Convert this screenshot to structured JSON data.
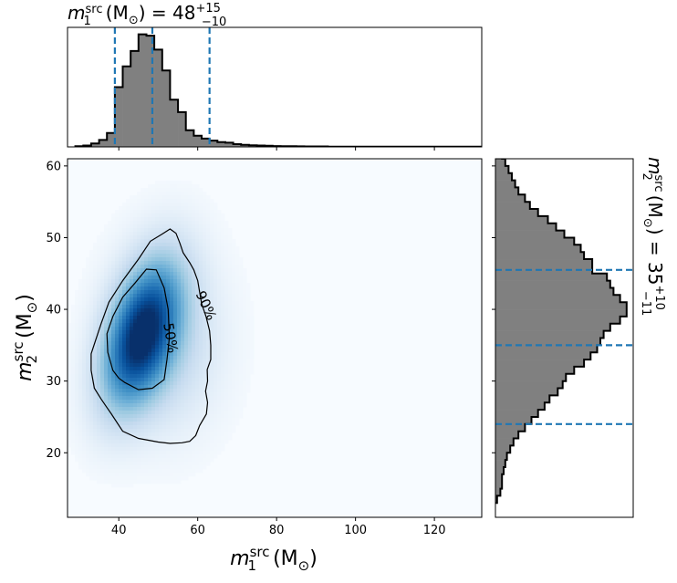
{
  "chart_data": [
    {
      "type": "heatmap",
      "panel": "joint",
      "xlabel_main": "m",
      "xlabel_sub": "1",
      "xlabel_sup": "src",
      "xlabel_unit": "(M",
      "xlabel_unit_sub": "⊙",
      "xlabel_close": ")",
      "ylabel_main": "m",
      "ylabel_sub": "2",
      "ylabel_sup": "src",
      "ylabel_unit": "(M",
      "ylabel_unit_sub": "⊙",
      "ylabel_close": ")",
      "xlim": [
        27,
        132
      ],
      "ylim": [
        11,
        61
      ],
      "xticks": [
        40,
        60,
        80,
        100,
        120
      ],
      "yticks": [
        20,
        30,
        40,
        50,
        60
      ],
      "colormap": "Blues",
      "density_peak": {
        "x": 44.5,
        "y": 36.5
      },
      "contours": [
        {
          "label": "50%",
          "points": [
            [
              41.5,
              29.8
            ],
            [
              45,
              28.8
            ],
            [
              48.5,
              29
            ],
            [
              51.5,
              30.2
            ],
            [
              52.2,
              33
            ],
            [
              52.8,
              36
            ],
            [
              52.5,
              40
            ],
            [
              51.5,
              43
            ],
            [
              49.5,
              45.5
            ],
            [
              47,
              45.6
            ],
            [
              44,
              43.6
            ],
            [
              41,
              41.7
            ],
            [
              38.5,
              39
            ],
            [
              37,
              36.6
            ],
            [
              37.2,
              34
            ],
            [
              38.5,
              31.5
            ],
            [
              40,
              30.4
            ],
            [
              41.5,
              29.8
            ]
          ]
        },
        {
          "label": "90%",
          "points": [
            [
              38,
              25.5
            ],
            [
              41,
              23
            ],
            [
              45,
              22
            ],
            [
              50,
              21.5
            ],
            [
              53,
              21.3
            ],
            [
              56,
              21.4
            ],
            [
              58,
              21.6
            ],
            [
              59.5,
              22.4
            ],
            [
              60.5,
              23.8
            ],
            [
              62.2,
              25.4
            ],
            [
              62.5,
              27
            ],
            [
              62,
              28.6
            ],
            [
              62.5,
              30
            ],
            [
              62.4,
              31.6
            ],
            [
              63.3,
              33
            ],
            [
              63.3,
              35
            ],
            [
              63,
              37
            ],
            [
              62.1,
              39
            ],
            [
              61,
              40.8
            ],
            [
              60.5,
              42.4
            ],
            [
              60,
              44
            ],
            [
              59,
              45.5
            ],
            [
              58,
              46.5
            ],
            [
              56.3,
              47.9
            ],
            [
              55.5,
              49.2
            ],
            [
              54.5,
              50.6
            ],
            [
              53,
              51.2
            ],
            [
              51,
              50.5
            ],
            [
              48,
              49.5
            ],
            [
              45,
              47
            ],
            [
              41,
              44
            ],
            [
              37.5,
              41
            ],
            [
              35.5,
              38
            ],
            [
              34,
              35.5
            ],
            [
              33,
              33.8
            ],
            [
              33,
              31.5
            ],
            [
              33.8,
              29
            ],
            [
              35.5,
              27.5
            ],
            [
              37,
              26.3
            ],
            [
              38,
              25.5
            ]
          ]
        }
      ],
      "contour_labels": [
        {
          "text": "50%",
          "x": 53,
          "y": 36,
          "angle": 80
        },
        {
          "text": "90%",
          "x": 62,
          "y": 40.5,
          "angle": 65
        }
      ]
    },
    {
      "type": "bar",
      "panel": "top-marginal",
      "title_main": "m",
      "title_sub": "1",
      "title_sup": "src",
      "title_unit": "(M",
      "title_unit_sub": "⊙",
      "title_close": ") = 48",
      "title_plus": "+15",
      "title_minus": "−10",
      "bin_start": 29,
      "bin_width": 2,
      "values": [
        0.5,
        1,
        2.5,
        5,
        10,
        43,
        58,
        69,
        81,
        80,
        70,
        55,
        34,
        25,
        12,
        8,
        6,
        4.5,
        3.5,
        3,
        2,
        1.5,
        1.2,
        1,
        0.8,
        0.6,
        0.5,
        0.5,
        0.4,
        0.3,
        0.3,
        0.3,
        0.2,
        0.2,
        0.2,
        0.2,
        0.2,
        0.1,
        0.1,
        0.1,
        0.1,
        0.1,
        0.1,
        0.1,
        0.1,
        0.1,
        0.1,
        0.1,
        0.1,
        0.1,
        0.1,
        0.1
      ],
      "ylim": [
        0,
        86
      ],
      "quantile_lines": [
        39,
        48.5,
        63
      ],
      "line_color": "#1f77b4",
      "fill_color": "#808080"
    },
    {
      "type": "bar",
      "panel": "right-marginal",
      "orientation": "horizontal",
      "title_main": "m",
      "title_sub": "2",
      "title_sup": "src",
      "title_unit": "(M",
      "title_unit_sub": "⊙",
      "title_close": ") = 35",
      "title_plus": "+10",
      "title_minus": "−11",
      "bin_start": 13,
      "bin_width": 1,
      "values": [
        0.5,
        1.5,
        2,
        2,
        2.5,
        3,
        3.5,
        4.5,
        5.5,
        7,
        9,
        11,
        13,
        15,
        16.5,
        19,
        20.5,
        21.5,
        24,
        27,
        29,
        31,
        32,
        33,
        35,
        38,
        40,
        40,
        38,
        36,
        35,
        34,
        29.5,
        29.5,
        27,
        26,
        24,
        21,
        18.5,
        16,
        13,
        10.5,
        9,
        7,
        6,
        5,
        4,
        3,
        2,
        1.5,
        1,
        0.5,
        0.5,
        0.3,
        0.2
      ],
      "xlim": [
        0,
        42
      ],
      "quantile_lines": [
        24,
        35,
        45.5
      ],
      "line_color": "#1f77b4",
      "fill_color": "#808080"
    }
  ]
}
